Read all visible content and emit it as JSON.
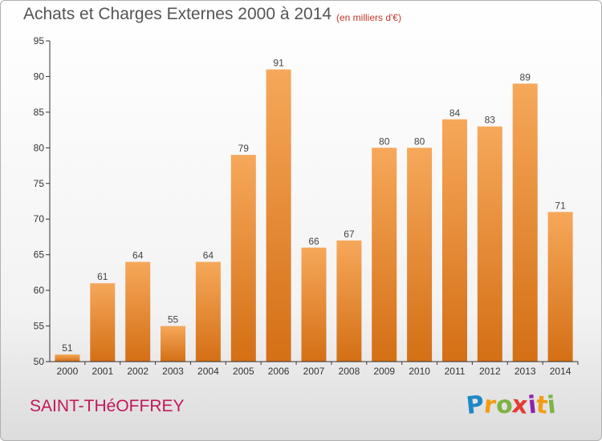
{
  "title": "Achats et Charges Externes 2000 à 2014",
  "subtitle": "(en milliers d'€)",
  "commune": "SAINT-THéOFFREY",
  "logo": {
    "letters": [
      "P",
      "r",
      "o",
      "x",
      "i",
      "t",
      "i"
    ],
    "colors": [
      "#1e88c8",
      "#f39c12",
      "#7cb342",
      "#e53935",
      "#8e24aa",
      "#f39c12",
      "#7cb342"
    ]
  },
  "colors": {
    "bar_light": "#f6a85a",
    "bar_dark": "#d46f15",
    "axis": "#333333",
    "grid": "#dddddd",
    "title": "#555555",
    "commune": "#c2185b"
  },
  "chart_data": {
    "type": "bar",
    "title": "Achats et Charges Externes 2000 à 2014",
    "subtitle": "(en milliers d'€)",
    "categories": [
      "2000",
      "2001",
      "2002",
      "2003",
      "2004",
      "2005",
      "2006",
      "2007",
      "2008",
      "2009",
      "2010",
      "2011",
      "2012",
      "2013",
      "2014"
    ],
    "values": [
      51,
      61,
      64,
      55,
      64,
      79,
      91,
      66,
      67,
      80,
      80,
      84,
      83,
      89,
      71
    ],
    "data_labels": [
      "51",
      "61",
      "64",
      "55",
      "64",
      "79",
      "91",
      "66",
      "67",
      "80",
      "80",
      "84",
      "83",
      "89",
      "71"
    ],
    "ylim": [
      50,
      95
    ],
    "yticks": [
      50,
      55,
      60,
      65,
      70,
      75,
      80,
      85,
      90,
      95
    ],
    "xlabel": "",
    "ylabel": "",
    "grid": false
  }
}
